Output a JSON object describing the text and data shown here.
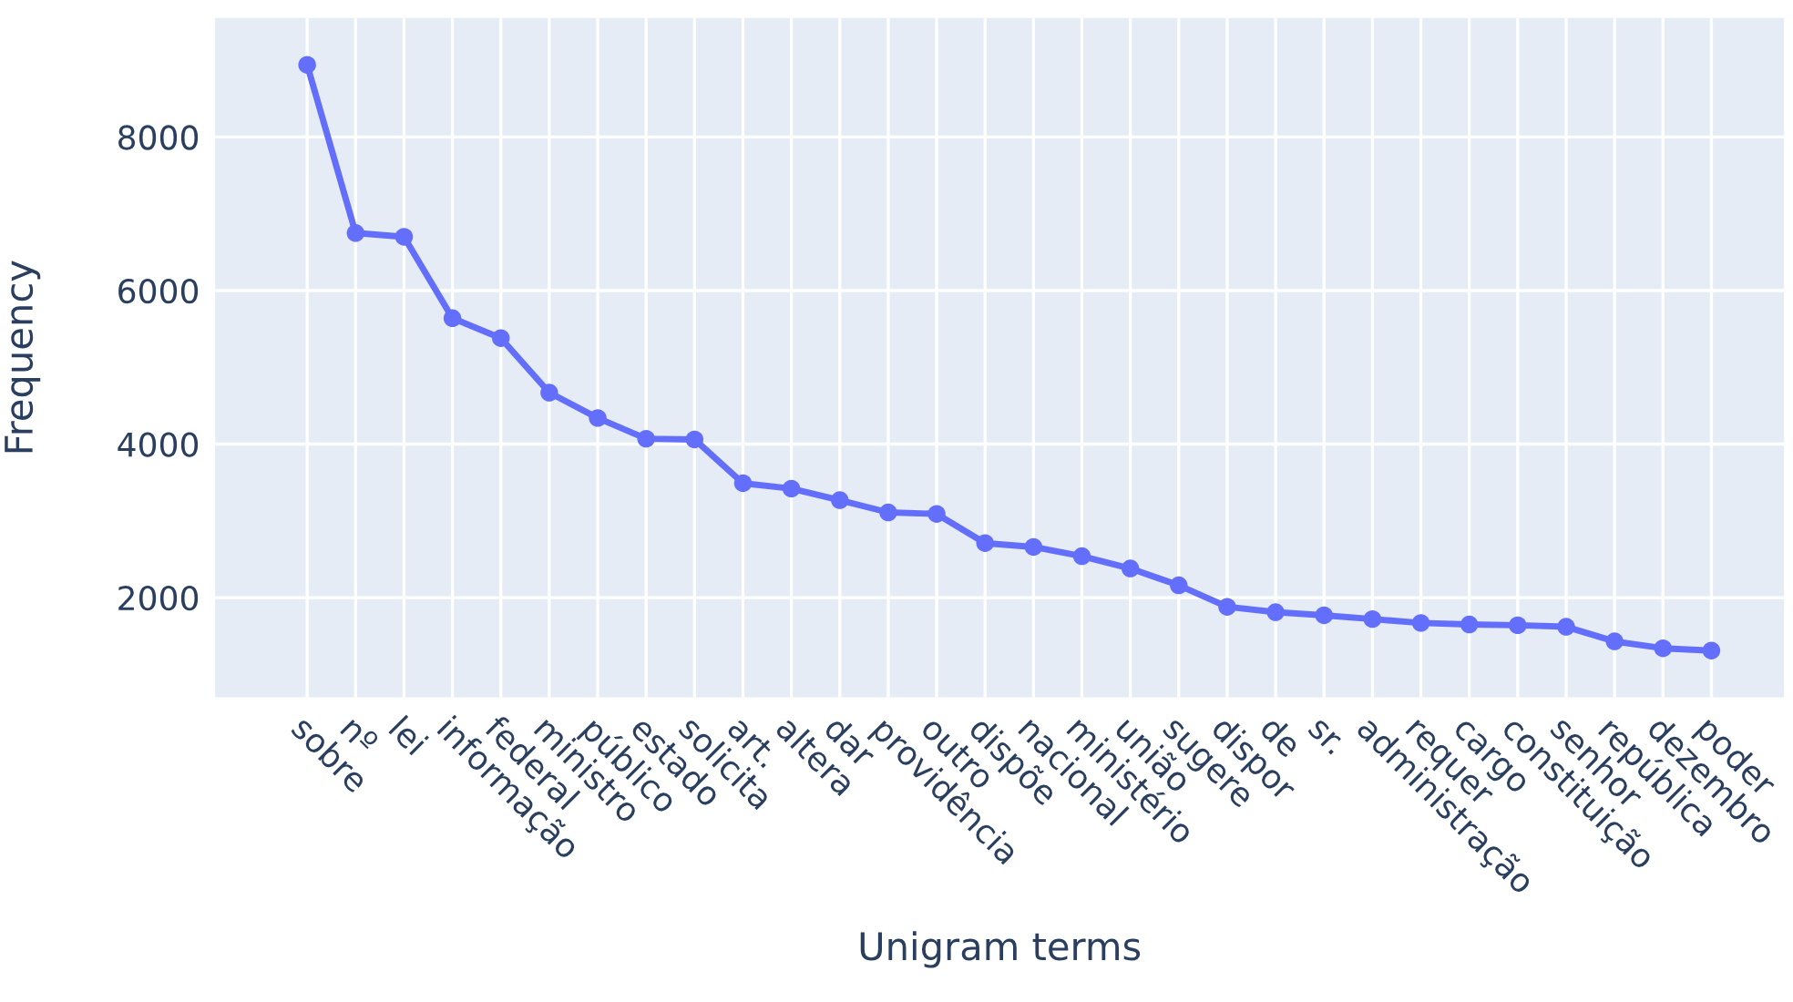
{
  "chart_data": {
    "type": "line",
    "xlabel": "Unigram terms",
    "ylabel": "Frequency",
    "categories": [
      "sobre",
      "nº",
      "lei",
      "informação",
      "federal",
      "ministro",
      "público",
      "estado",
      "solicita",
      "art.",
      "altera",
      "dar",
      "providência",
      "outro",
      "dispõe",
      "nacional",
      "ministério",
      "união",
      "sugere",
      "dispor",
      "de",
      "sr.",
      "administração",
      "requer",
      "cargo",
      "constituição",
      "senhor",
      "república",
      "dezembro",
      "poder"
    ],
    "series": [
      {
        "color": "#636efa",
        "values": [
          8940,
          6750,
          6700,
          5640,
          5380,
          4670,
          4340,
          4070,
          4060,
          3490,
          3420,
          3270,
          3110,
          3090,
          2710,
          2660,
          2540,
          2380,
          2160,
          1880,
          1810,
          1770,
          1720,
          1670,
          1650,
          1640,
          1620,
          1430,
          1340,
          1310
        ]
      }
    ],
    "ylim": [
      700,
      9550
    ],
    "yticks": [
      2000,
      4000,
      6000,
      8000
    ],
    "grid": true,
    "marker": "circle",
    "line_style": "solid",
    "legend": false
  }
}
